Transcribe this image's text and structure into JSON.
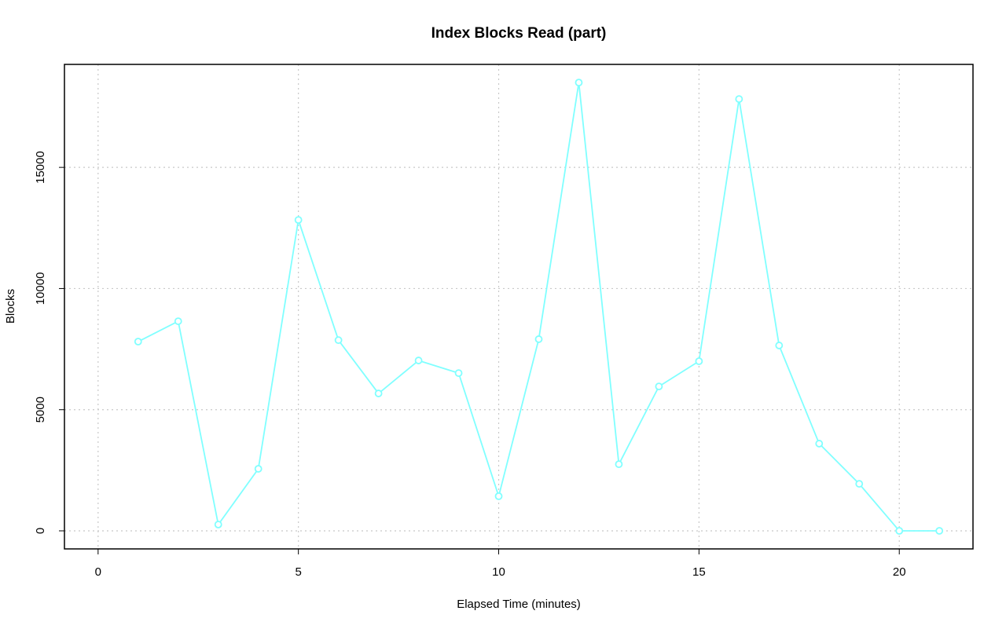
{
  "chart_data": {
    "type": "line",
    "title": "Index Blocks Read (part)",
    "x_label": "Elapsed Time (minutes)",
    "y_label": "Blocks",
    "x": [
      1,
      2,
      3,
      4,
      5,
      6,
      7,
      8,
      9,
      10,
      11,
      12,
      13,
      14,
      15,
      16,
      17,
      18,
      19,
      20,
      21
    ],
    "series": [
      {
        "name": "Blocks",
        "color": "#80ffff",
        "values": [
          7810,
          8650,
          260,
          2560,
          12830,
          7870,
          5670,
          7030,
          6510,
          1430,
          7910,
          18500,
          2750,
          5960,
          7000,
          17820,
          7650,
          3600,
          1940,
          0,
          0
        ]
      }
    ],
    "xlim": [
      -0.84,
      21.84
    ],
    "xticks": [
      0,
      5,
      10,
      15,
      20
    ],
    "ylim": [
      -745,
      19250
    ],
    "yticks": [
      0,
      5000,
      10000,
      15000
    ],
    "grid": true,
    "markers": true
  }
}
